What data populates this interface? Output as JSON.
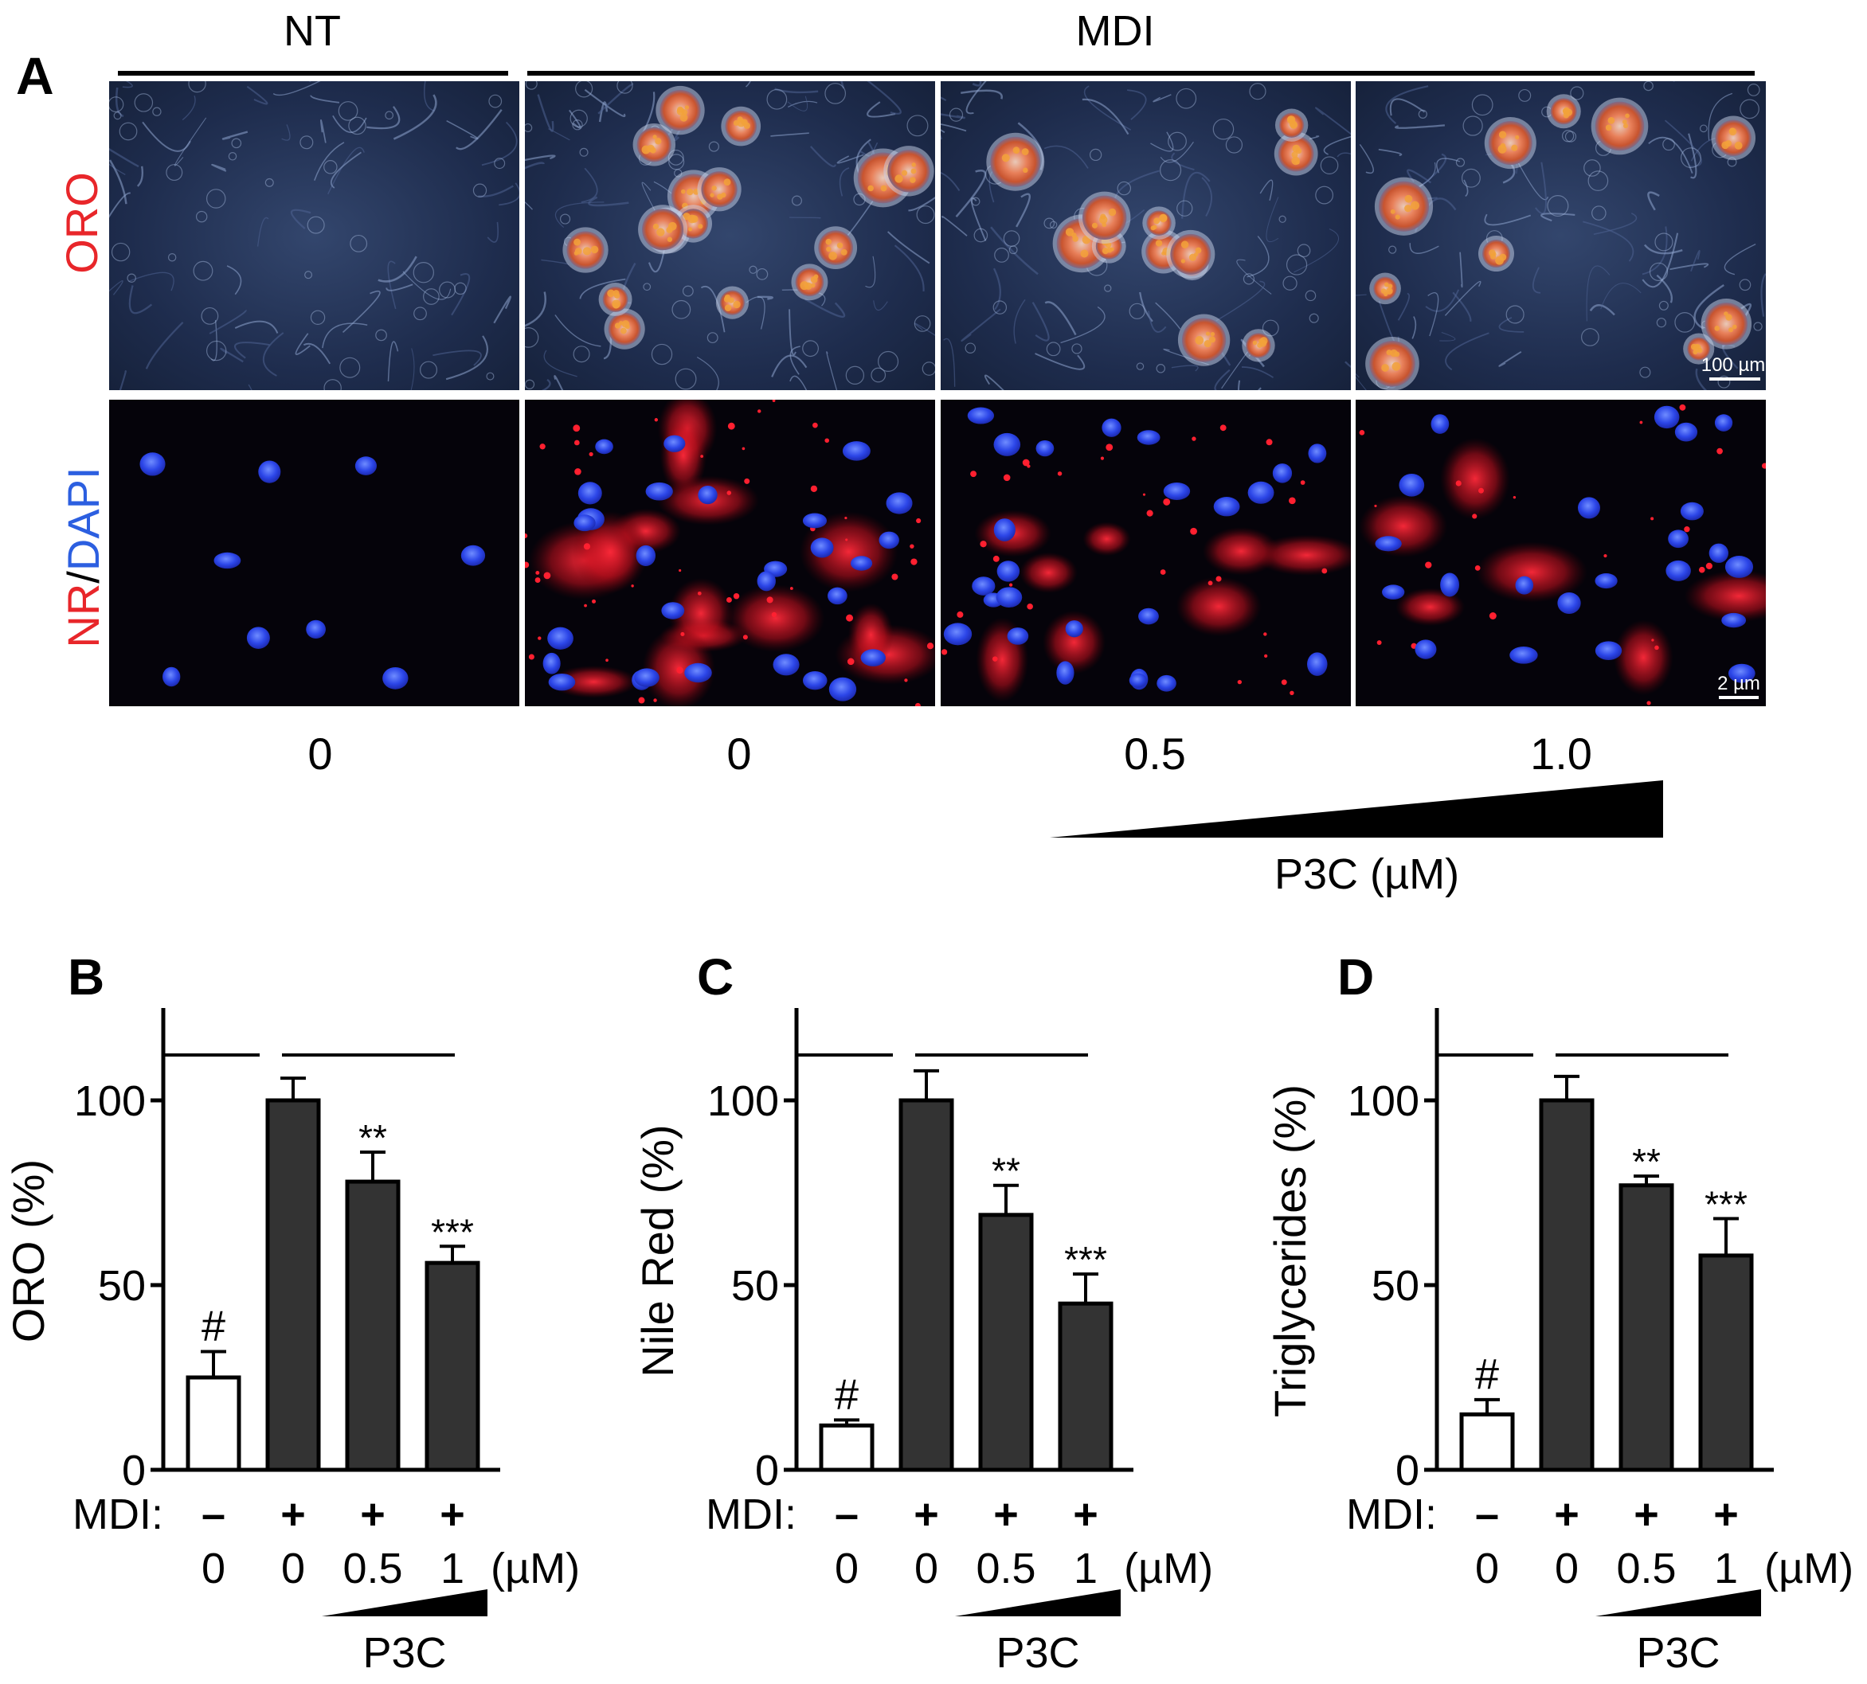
{
  "panel_a": {
    "letter": "A",
    "group_labels": [
      "NT",
      "MDI"
    ],
    "row_labels": {
      "oro": "ORO",
      "nr": "NR",
      "slash": "/",
      "dapi": "DAPI"
    },
    "scale_bars": [
      "100 µm",
      "2 µm"
    ],
    "doses": [
      "0",
      "0",
      "0.5",
      "1.0"
    ],
    "gradient_label": "P3C (µM)"
  },
  "colors": {
    "oro_red": "#e8262a",
    "dapi_blue": "#2c5fe0",
    "bar_dark": "#333333",
    "bar_open": "#ffffff"
  },
  "panels": [
    {
      "letter": "B",
      "ylabel": "ORO (%)",
      "ticks": [
        "0",
        "50",
        "100"
      ],
      "mdi_label": "MDI:",
      "mdi": [
        "–",
        "+",
        "+",
        "+"
      ],
      "doses": [
        "0",
        "0",
        "0.5",
        "1"
      ],
      "unit": "(µM)",
      "compound": "P3C",
      "marks": [
        "#",
        "",
        "**",
        "***"
      ]
    },
    {
      "letter": "C",
      "ylabel": "Nile Red (%)",
      "ticks": [
        "0",
        "50",
        "100"
      ],
      "mdi_label": "MDI:",
      "mdi": [
        "–",
        "+",
        "+",
        "+"
      ],
      "doses": [
        "0",
        "0",
        "0.5",
        "1"
      ],
      "unit": "(µM)",
      "compound": "P3C",
      "marks": [
        "#",
        "",
        "**",
        "***"
      ]
    },
    {
      "letter": "D",
      "ylabel": "Triglycerides (%)",
      "ticks": [
        "0",
        "50",
        "100"
      ],
      "mdi_label": "MDI:",
      "mdi": [
        "–",
        "+",
        "+",
        "+"
      ],
      "doses": [
        "0",
        "0",
        "0.5",
        "1"
      ],
      "unit": "(µM)",
      "compound": "P3C",
      "marks": [
        "#",
        "",
        "**",
        "***"
      ]
    }
  ],
  "chart_data": [
    {
      "type": "bar",
      "categories": [
        "0",
        "0",
        "0.5",
        "1"
      ],
      "series": [
        {
          "values": [
            25,
            100,
            78,
            56
          ],
          "errors": [
            7,
            6,
            8,
            4.5
          ]
        }
      ],
      "ylabel": "ORO (%)",
      "ylim": [
        0,
        125
      ],
      "yticks": [
        0,
        50,
        100
      ],
      "grid": false
    },
    {
      "type": "bar",
      "categories": [
        "0",
        "0",
        "0.5",
        "1"
      ],
      "series": [
        {
          "values": [
            12,
            100,
            69,
            45
          ],
          "errors": [
            1.5,
            8,
            8,
            8
          ]
        }
      ],
      "ylabel": "Nile Red (%)",
      "ylim": [
        0,
        125
      ],
      "yticks": [
        0,
        50,
        100
      ],
      "grid": false
    },
    {
      "type": "bar",
      "categories": [
        "0",
        "0",
        "0.5",
        "1"
      ],
      "series": [
        {
          "values": [
            15,
            100,
            77,
            58
          ],
          "errors": [
            4,
            6.5,
            2.5,
            10
          ]
        }
      ],
      "ylabel": "Triglycerides (%)",
      "ylim": [
        0,
        125
      ],
      "yticks": [
        0,
        50,
        100
      ],
      "grid": false
    }
  ]
}
